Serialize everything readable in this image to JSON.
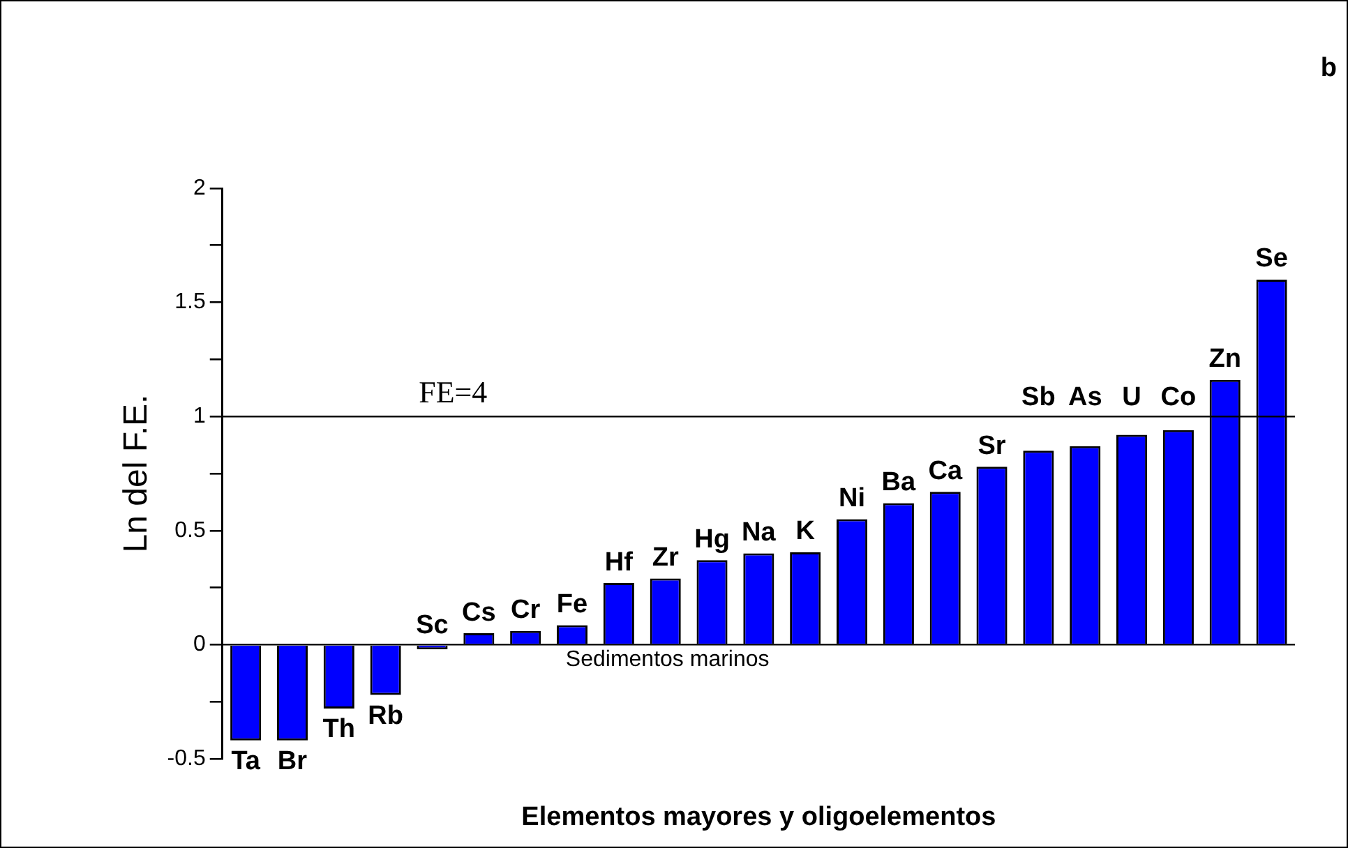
{
  "chart_data": {
    "type": "bar",
    "xlabel": "Elementos mayores y oligoelementos",
    "ylabel": "Ln del F.E.",
    "categories": [
      "Ta",
      "Br",
      "Th",
      "Rb",
      "Sc",
      "Cs",
      "Cr",
      "Fe",
      "Hf",
      "Zr",
      "Hg",
      "Na",
      "K",
      "Ni",
      "Ba",
      "Ca",
      "Sr",
      "Sb",
      "As",
      "U",
      "Co",
      "Zn",
      "Se"
    ],
    "values": [
      -0.42,
      -0.42,
      -0.28,
      -0.22,
      -0.02,
      0.05,
      0.06,
      0.085,
      0.27,
      0.29,
      0.37,
      0.4,
      0.405,
      0.55,
      0.62,
      0.67,
      0.78,
      0.85,
      0.87,
      0.92,
      0.94,
      1.16,
      1.6
    ],
    "color": "#0000ff",
    "ylim": [
      -0.5,
      2
    ],
    "yticks": [
      -0.5,
      {
        "value": -0.25,
        "label": null
      },
      0,
      {
        "value": 0.25,
        "label": null
      },
      0.5,
      {
        "value": 0.75,
        "label": null
      },
      1,
      {
        "value": 1.25,
        "label": null
      },
      1.5,
      {
        "value": 1.75,
        "label": null
      },
      2
    ],
    "ref_lines": [
      {
        "axis": "y",
        "value": 1
      },
      {
        "axis": "y",
        "value": 0,
        "label": "Sedimentos marinos"
      }
    ],
    "annotations": [
      "FE=4",
      "b"
    ],
    "grid": false,
    "legend": false
  }
}
